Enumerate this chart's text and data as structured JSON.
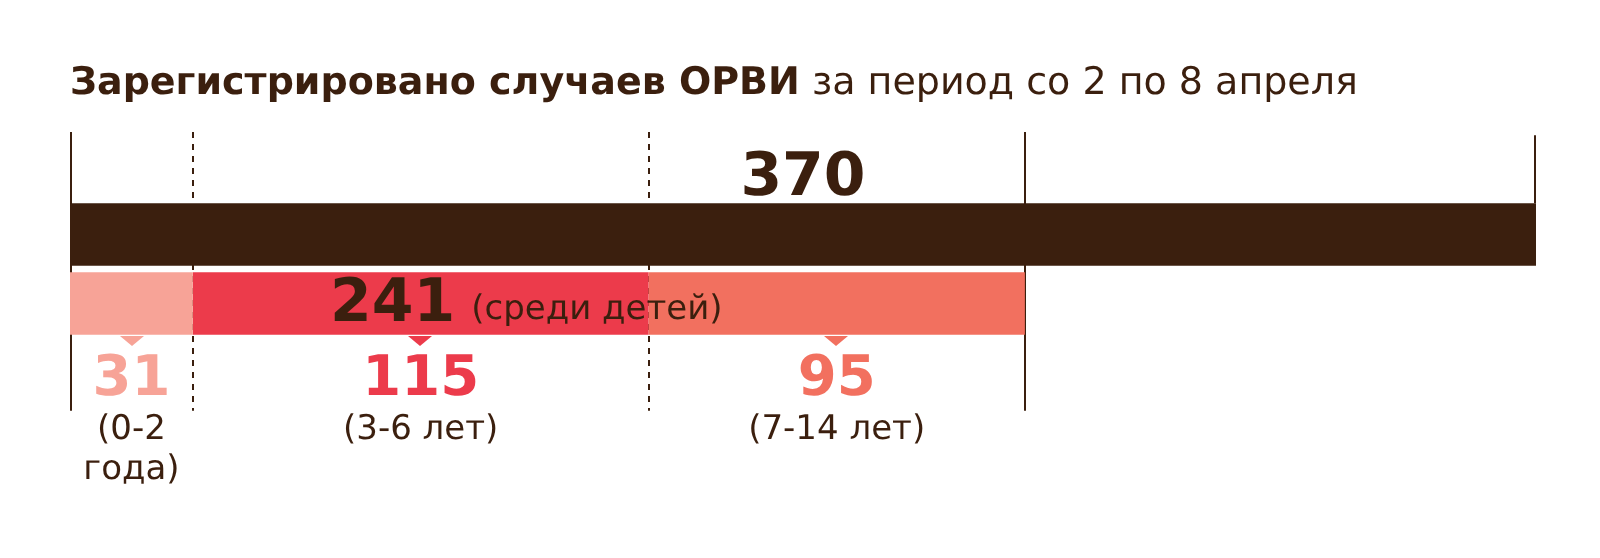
{
  "chart_data": {
    "type": "bar",
    "orientation": "horizontal",
    "stacked": true,
    "title": "Зарегистрировано случаев ОРВИ",
    "subtitle": "за период со 2 по 8 апреля",
    "categories": [
      null,
      null
    ],
    "series": [
      {
        "color": "#3b1f0e",
        "values": [
          370,
          null
        ]
      },
      {
        "name": "(0-2 года)",
        "color": "#f7a397",
        "values": [
          null,
          31
        ],
        "value_labels": [
          null,
          "31"
        ]
      },
      {
        "name": "(3-6 лет)",
        "color": "#ec3b4b",
        "values": [
          null,
          115
        ],
        "value_labels": [
          null,
          "115"
        ]
      },
      {
        "name": "(7-14 лет)",
        "color": "#f2705f",
        "values": [
          null,
          95
        ],
        "value_labels": [
          null,
          "95"
        ]
      }
    ],
    "totals": [
      "370",
      "241"
    ],
    "annotations": [
      "(среди детей)"
    ],
    "ref_lines": [
      {
        "axis": "x",
        "value": 0,
        "line_style": "solid"
      },
      {
        "axis": "x",
        "value": 31,
        "line_style": "dashed"
      },
      {
        "axis": "x",
        "value": 146,
        "line_style": "dashed"
      },
      {
        "axis": "x",
        "value": 241,
        "line_style": "solid"
      }
    ],
    "xlim": [
      0,
      370
    ],
    "tick_labels": false,
    "legend": false
  }
}
